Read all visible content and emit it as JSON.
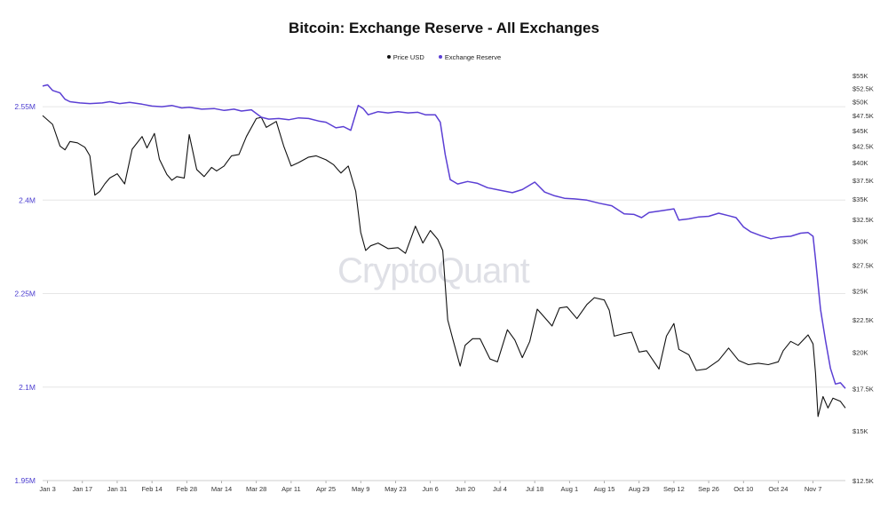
{
  "chart_data": {
    "type": "line",
    "title": "Bitcoin: Exchange Reserve - All Exchanges",
    "watermark": "CryptoQuant",
    "legend_position": "top-center",
    "grid": "horizontal",
    "x_ticks": [
      "Jan 3",
      "Jan 17",
      "Jan 31",
      "Feb 14",
      "Feb 28",
      "Mar 14",
      "Mar 28",
      "Apr 11",
      "Apr 25",
      "May 9",
      "May 23",
      "Jun 6",
      "Jun 20",
      "Jul 4",
      "Jul 18",
      "Aug 1",
      "Aug 15",
      "Aug 29",
      "Sep 12",
      "Sep 26",
      "Oct 10",
      "Oct 24",
      "Nov 7"
    ],
    "x_range": [
      "2022-01-01",
      "2022-11-20"
    ],
    "y_left": {
      "ticks": [
        "2.55M",
        "2.4M",
        "2.25M",
        "2.1M",
        "1.95M"
      ],
      "ylim": [
        1950000,
        2600000
      ]
    },
    "y_right": {
      "scale": "log",
      "ticks": [
        "$55K",
        "$52.5K",
        "$50K",
        "$47.5K",
        "$45K",
        "$42.5K",
        "$40K",
        "$37.5K",
        "$35K",
        "$32.5K",
        "$30K",
        "$27.5K",
        "$25K",
        "$22.5K",
        "$20K",
        "$17.5K",
        "$15K",
        "$12.5K"
      ],
      "ylim": [
        12500,
        55000
      ]
    },
    "series": [
      {
        "name": "Price USD",
        "color": "#111111",
        "axis": "right",
        "points": [
          [
            "2022-01-01",
            47500
          ],
          [
            "2022-01-05",
            46000
          ],
          [
            "2022-01-08",
            42500
          ],
          [
            "2022-01-10",
            41900
          ],
          [
            "2022-01-12",
            43200
          ],
          [
            "2022-01-15",
            43000
          ],
          [
            "2022-01-18",
            42300
          ],
          [
            "2022-01-20",
            41000
          ],
          [
            "2022-01-22",
            35500
          ],
          [
            "2022-01-24",
            36000
          ],
          [
            "2022-01-26",
            37000
          ],
          [
            "2022-01-28",
            37800
          ],
          [
            "2022-01-31",
            38400
          ],
          [
            "2022-02-03",
            37000
          ],
          [
            "2022-02-06",
            42000
          ],
          [
            "2022-02-10",
            44000
          ],
          [
            "2022-02-12",
            42200
          ],
          [
            "2022-02-15",
            44500
          ],
          [
            "2022-02-17",
            40500
          ],
          [
            "2022-02-20",
            38300
          ],
          [
            "2022-02-22",
            37500
          ],
          [
            "2022-02-24",
            38000
          ],
          [
            "2022-02-27",
            37800
          ],
          [
            "2022-03-01",
            44300
          ],
          [
            "2022-03-04",
            39000
          ],
          [
            "2022-03-07",
            38000
          ],
          [
            "2022-03-10",
            39300
          ],
          [
            "2022-03-12",
            38800
          ],
          [
            "2022-03-15",
            39500
          ],
          [
            "2022-03-18",
            41000
          ],
          [
            "2022-03-21",
            41200
          ],
          [
            "2022-03-24",
            44000
          ],
          [
            "2022-03-28",
            47000
          ],
          [
            "2022-03-30",
            47200
          ],
          [
            "2022-04-01",
            45500
          ],
          [
            "2022-04-05",
            46500
          ],
          [
            "2022-04-08",
            42500
          ],
          [
            "2022-04-11",
            39500
          ],
          [
            "2022-04-14",
            40000
          ],
          [
            "2022-04-18",
            40800
          ],
          [
            "2022-04-21",
            41000
          ],
          [
            "2022-04-25",
            40400
          ],
          [
            "2022-04-28",
            39700
          ],
          [
            "2022-05-01",
            38500
          ],
          [
            "2022-05-04",
            39500
          ],
          [
            "2022-05-07",
            36000
          ],
          [
            "2022-05-09",
            31000
          ],
          [
            "2022-05-11",
            29000
          ],
          [
            "2022-05-13",
            29500
          ],
          [
            "2022-05-16",
            29800
          ],
          [
            "2022-05-20",
            29200
          ],
          [
            "2022-05-24",
            29300
          ],
          [
            "2022-05-27",
            28700
          ],
          [
            "2022-05-31",
            31700
          ],
          [
            "2022-06-03",
            29800
          ],
          [
            "2022-06-06",
            31200
          ],
          [
            "2022-06-09",
            30200
          ],
          [
            "2022-06-11",
            29000
          ],
          [
            "2022-06-13",
            22500
          ],
          [
            "2022-06-15",
            21000
          ],
          [
            "2022-06-18",
            19000
          ],
          [
            "2022-06-20",
            20500
          ],
          [
            "2022-06-23",
            21000
          ],
          [
            "2022-06-26",
            21000
          ],
          [
            "2022-06-30",
            19500
          ],
          [
            "2022-07-03",
            19300
          ],
          [
            "2022-07-07",
            21700
          ],
          [
            "2022-07-10",
            20900
          ],
          [
            "2022-07-13",
            19600
          ],
          [
            "2022-07-16",
            20800
          ],
          [
            "2022-07-19",
            23400
          ],
          [
            "2022-07-22",
            22700
          ],
          [
            "2022-07-25",
            22000
          ],
          [
            "2022-07-28",
            23500
          ],
          [
            "2022-07-31",
            23600
          ],
          [
            "2022-08-04",
            22600
          ],
          [
            "2022-08-08",
            23800
          ],
          [
            "2022-08-11",
            24400
          ],
          [
            "2022-08-15",
            24200
          ],
          [
            "2022-08-17",
            23300
          ],
          [
            "2022-08-19",
            21200
          ],
          [
            "2022-08-23",
            21400
          ],
          [
            "2022-08-26",
            21500
          ],
          [
            "2022-08-29",
            20000
          ],
          [
            "2022-09-01",
            20100
          ],
          [
            "2022-09-06",
            18800
          ],
          [
            "2022-09-09",
            21200
          ],
          [
            "2022-09-12",
            22200
          ],
          [
            "2022-09-14",
            20200
          ],
          [
            "2022-09-18",
            19800
          ],
          [
            "2022-09-21",
            18700
          ],
          [
            "2022-09-25",
            18800
          ],
          [
            "2022-09-30",
            19400
          ],
          [
            "2022-10-04",
            20300
          ],
          [
            "2022-10-08",
            19400
          ],
          [
            "2022-10-12",
            19100
          ],
          [
            "2022-10-16",
            19200
          ],
          [
            "2022-10-20",
            19100
          ],
          [
            "2022-10-24",
            19300
          ],
          [
            "2022-10-26",
            20100
          ],
          [
            "2022-10-29",
            20800
          ],
          [
            "2022-11-01",
            20500
          ],
          [
            "2022-11-05",
            21300
          ],
          [
            "2022-11-07",
            20600
          ],
          [
            "2022-11-08",
            18500
          ],
          [
            "2022-11-09",
            15800
          ],
          [
            "2022-11-11",
            17000
          ],
          [
            "2022-11-13",
            16300
          ],
          [
            "2022-11-15",
            16900
          ],
          [
            "2022-11-18",
            16700
          ],
          [
            "2022-11-20",
            16300
          ]
        ]
      },
      {
        "name": "Exchange Reserve",
        "color": "#5b3fd4",
        "axis": "left",
        "points": [
          [
            "2022-01-01",
            2583000
          ],
          [
            "2022-01-03",
            2585000
          ],
          [
            "2022-01-05",
            2576000
          ],
          [
            "2022-01-08",
            2572000
          ],
          [
            "2022-01-10",
            2562000
          ],
          [
            "2022-01-12",
            2558000
          ],
          [
            "2022-01-16",
            2556000
          ],
          [
            "2022-01-20",
            2555000
          ],
          [
            "2022-01-25",
            2556000
          ],
          [
            "2022-01-28",
            2558000
          ],
          [
            "2022-02-01",
            2555000
          ],
          [
            "2022-02-05",
            2557000
          ],
          [
            "2022-02-10",
            2554000
          ],
          [
            "2022-02-14",
            2551000
          ],
          [
            "2022-02-18",
            2550000
          ],
          [
            "2022-02-22",
            2552000
          ],
          [
            "2022-02-26",
            2548000
          ],
          [
            "2022-03-01",
            2549000
          ],
          [
            "2022-03-06",
            2546000
          ],
          [
            "2022-03-11",
            2547000
          ],
          [
            "2022-03-15",
            2544000
          ],
          [
            "2022-03-19",
            2546000
          ],
          [
            "2022-03-22",
            2543000
          ],
          [
            "2022-03-26",
            2545000
          ],
          [
            "2022-03-30",
            2533000
          ],
          [
            "2022-04-02",
            2530000
          ],
          [
            "2022-04-06",
            2531000
          ],
          [
            "2022-04-10",
            2529000
          ],
          [
            "2022-04-14",
            2532000
          ],
          [
            "2022-04-18",
            2531000
          ],
          [
            "2022-04-22",
            2527000
          ],
          [
            "2022-04-25",
            2525000
          ],
          [
            "2022-04-29",
            2516000
          ],
          [
            "2022-05-02",
            2518000
          ],
          [
            "2022-05-05",
            2512000
          ],
          [
            "2022-05-08",
            2552000
          ],
          [
            "2022-05-10",
            2547000
          ],
          [
            "2022-05-12",
            2537000
          ],
          [
            "2022-05-16",
            2542000
          ],
          [
            "2022-05-20",
            2540000
          ],
          [
            "2022-05-24",
            2542000
          ],
          [
            "2022-05-28",
            2540000
          ],
          [
            "2022-06-01",
            2541000
          ],
          [
            "2022-06-04",
            2537000
          ],
          [
            "2022-06-08",
            2537000
          ],
          [
            "2022-06-10",
            2525000
          ],
          [
            "2022-06-12",
            2473000
          ],
          [
            "2022-06-14",
            2433000
          ],
          [
            "2022-06-17",
            2426000
          ],
          [
            "2022-06-21",
            2430000
          ],
          [
            "2022-06-25",
            2427000
          ],
          [
            "2022-06-29",
            2420000
          ],
          [
            "2022-07-04",
            2416000
          ],
          [
            "2022-07-09",
            2412000
          ],
          [
            "2022-07-13",
            2417000
          ],
          [
            "2022-07-18",
            2429000
          ],
          [
            "2022-07-22",
            2413000
          ],
          [
            "2022-07-26",
            2407000
          ],
          [
            "2022-07-30",
            2403000
          ],
          [
            "2022-08-03",
            2402000
          ],
          [
            "2022-08-08",
            2400000
          ],
          [
            "2022-08-13",
            2395000
          ],
          [
            "2022-08-18",
            2391000
          ],
          [
            "2022-08-23",
            2378000
          ],
          [
            "2022-08-27",
            2377000
          ],
          [
            "2022-08-30",
            2372000
          ],
          [
            "2022-09-02",
            2380000
          ],
          [
            "2022-09-07",
            2383000
          ],
          [
            "2022-09-12",
            2386000
          ],
          [
            "2022-09-14",
            2368000
          ],
          [
            "2022-09-18",
            2370000
          ],
          [
            "2022-09-22",
            2373000
          ],
          [
            "2022-09-26",
            2374000
          ],
          [
            "2022-09-30",
            2379000
          ],
          [
            "2022-10-04",
            2375000
          ],
          [
            "2022-10-07",
            2372000
          ],
          [
            "2022-10-10",
            2357000
          ],
          [
            "2022-10-13",
            2349000
          ],
          [
            "2022-10-17",
            2343000
          ],
          [
            "2022-10-21",
            2338000
          ],
          [
            "2022-10-25",
            2341000
          ],
          [
            "2022-10-29",
            2342000
          ],
          [
            "2022-11-02",
            2347000
          ],
          [
            "2022-11-05",
            2348000
          ],
          [
            "2022-11-07",
            2342000
          ],
          [
            "2022-11-08",
            2305000
          ],
          [
            "2022-11-10",
            2225000
          ],
          [
            "2022-11-12",
            2175000
          ],
          [
            "2022-11-14",
            2130000
          ],
          [
            "2022-11-16",
            2105000
          ],
          [
            "2022-11-18",
            2107000
          ],
          [
            "2022-11-20",
            2098000
          ]
        ]
      }
    ]
  }
}
